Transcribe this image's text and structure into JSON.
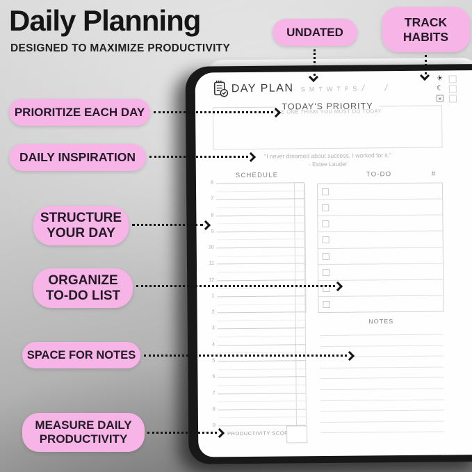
{
  "colors": {
    "bubble_pink": "#f6b4e7",
    "arrow_ink": "#141414",
    "page_white": "#fefefe",
    "cover_black": "#181818"
  },
  "header": {
    "title": "Daily Planning",
    "subtitle": "DESIGNED TO MAXIMIZE PRODUCTIVITY"
  },
  "callouts": {
    "undated": "UNDATED",
    "track_habits": "TRACK HABITS",
    "prioritize": "PRIORITIZE EACH DAY",
    "inspiration": "DAILY INSPIRATION",
    "structure": "STRUCTURE YOUR DAY",
    "organize": "ORGANIZE TO-DO LIST",
    "notes": "SPACE FOR NOTES",
    "measure": "MEASURE DAILY PRODUCTIVITY"
  },
  "planner": {
    "brand": "DAY PLAN",
    "days": [
      "S",
      "M",
      "T",
      "W",
      "T",
      "F",
      "S"
    ],
    "date_separators": [
      "/",
      "/"
    ],
    "habits": [
      {
        "icon": "sun-icon",
        "glyph": "☀"
      },
      {
        "icon": "moon-icon",
        "glyph": "☾"
      },
      {
        "icon": "x-mark-box-icon",
        "glyph": "×"
      }
    ],
    "priority": {
      "title": "TODAY'S PRIORITY",
      "subtitle": "THE ONE THING YOU MUST DO TODAY"
    },
    "quote": {
      "text": "\"I never dreamed about success. I worked for it.\"",
      "author": "- Estee Lauder"
    },
    "schedule": {
      "title": "SCHEDULE",
      "hours": [
        "6",
        "7",
        "8",
        "9",
        "10",
        "11",
        "12",
        "1",
        "2",
        "3",
        "4",
        "5",
        "6",
        "7",
        "8",
        "9"
      ]
    },
    "todo": {
      "title": "TO-DO",
      "hash_header": "#",
      "rows": 8
    },
    "notes": {
      "title": "NOTES",
      "lines": 10
    },
    "score_label": "PRODUCTIVITY SCORE"
  }
}
